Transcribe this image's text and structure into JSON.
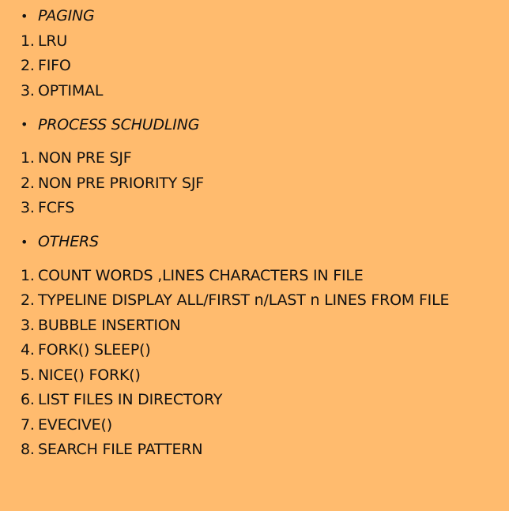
{
  "sections": [
    {
      "heading": "PAGING",
      "bullet": "•",
      "items": [
        {
          "num": "1.",
          "text": "LRU"
        },
        {
          "num": "2.",
          "text": "FIFO"
        },
        {
          "num": "3.",
          "text": "OPTIMAL"
        }
      ]
    },
    {
      "heading": "PROCESS SCHUDLING",
      "bullet": "•",
      "items": [
        {
          "num": "1.",
          "text": "NON PRE SJF"
        },
        {
          "num": "2.",
          "text": "NON PRE PRIORITY SJF"
        },
        {
          "num": "3.",
          "text": "FCFS"
        }
      ]
    },
    {
      "heading": "OTHERS",
      "bullet": "•",
      "items": [
        {
          "num": "1.",
          "text": "COUNT WORDS ,LINES CHARACTERS IN FILE"
        },
        {
          "num": "2.",
          "text": "TYPELINE DISPLAY ALL/FIRST n/LAST n LINES FROM FILE"
        },
        {
          "num": "3.",
          "text": "BUBBLE INSERTION"
        },
        {
          "num": "4.",
          "text": "FORK() SLEEP()"
        },
        {
          "num": "5.",
          "text": "NICE() FORK()"
        },
        {
          "num": "6.",
          "text": "LIST FILES IN DIRECTORY"
        },
        {
          "num": "7.",
          "text": "EVECIVE()"
        },
        {
          "num": "8.",
          "text": "SEARCH FILE PATTERN"
        }
      ]
    }
  ]
}
